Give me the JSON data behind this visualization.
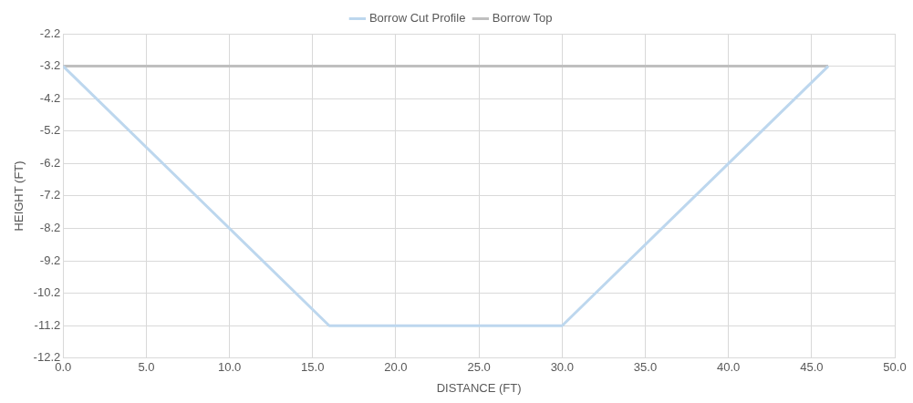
{
  "chart_data": {
    "type": "line",
    "xlabel": "DISTANCE (FT)",
    "ylabel": "HEIGHT (FT)",
    "series": [
      {
        "name": "Borrow Cut Profile",
        "color": "#bdd7ee",
        "x": [
          0,
          16,
          30,
          46
        ],
        "values": [
          -3.2,
          -11.2,
          -11.2,
          -3.2
        ]
      },
      {
        "name": "Borrow Top",
        "color": "#bfbfbf",
        "x": [
          0,
          46
        ],
        "values": [
          -3.2,
          -3.2
        ]
      }
    ],
    "xlim": [
      0,
      50
    ],
    "xticks": [
      {
        "value": 0,
        "label": "0.0"
      },
      {
        "value": 5,
        "label": "5.0"
      },
      {
        "value": 10,
        "label": "10.0"
      },
      {
        "value": 15,
        "label": "15.0"
      },
      {
        "value": 20,
        "label": "20.0"
      },
      {
        "value": 25,
        "label": "25.0"
      },
      {
        "value": 30,
        "label": "30.0"
      },
      {
        "value": 35,
        "label": "35.0"
      },
      {
        "value": 40,
        "label": "40.0"
      },
      {
        "value": 45,
        "label": "45.0"
      },
      {
        "value": 50,
        "label": "50.0"
      }
    ],
    "ylim": [
      -12.2,
      -2.2
    ],
    "yticks": [
      -12.2,
      -11.2,
      -10.2,
      -9.2,
      -8.2,
      -7.2,
      -6.2,
      -5.2,
      -4.2,
      -3.2,
      -2.2
    ],
    "grid": true,
    "legend": "top",
    "marker": "none",
    "line_style": "solid"
  }
}
